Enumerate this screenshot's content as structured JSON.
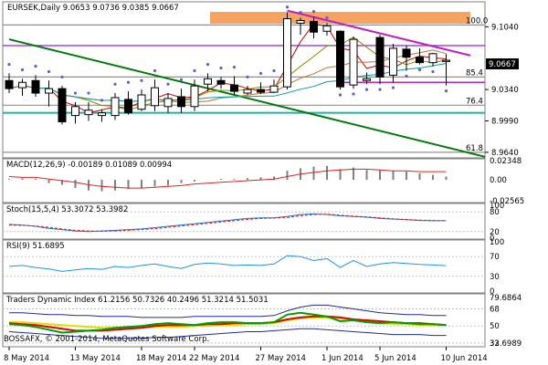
{
  "chart_data": {
    "type": "candlestick",
    "symbol_line": "EURSEK,Daily  9.0653 9.0736 9.0385 9.0667",
    "current_price": "9.0667",
    "price_range": [
      8.9588,
      9.1308
    ],
    "price_ticks": [
      "9.1040",
      "9.0667",
      "9.0340",
      "8.9990",
      "8.9640"
    ],
    "fib_levels": [
      {
        "label": "100.0",
        "value": 9.106
      },
      {
        "label": "85.4",
        "value": 9.048
      },
      {
        "label": "76.4",
        "value": 9.0165
      },
      {
        "label": "61.8",
        "value": 8.964
      }
    ],
    "x_labels": [
      {
        "text": "8 May 2014",
        "day": 0
      },
      {
        "text": "13 May 2014",
        "day": 5
      },
      {
        "text": "18 May 2014",
        "day": 10
      },
      {
        "text": "22 May 2014",
        "day": 14
      },
      {
        "text": "27 May 2014",
        "day": 19
      },
      {
        "text": "1 Jun 2014",
        "day": 24
      },
      {
        "text": "5 Jun 2014",
        "day": 28
      },
      {
        "text": "10 Jun 2014",
        "day": 33
      }
    ],
    "candles": [
      {
        "day": 0,
        "o": 9.044,
        "h": 9.052,
        "l": 9.03,
        "c": 9.035
      },
      {
        "day": 1,
        "o": 9.036,
        "h": 9.046,
        "l": 9.027,
        "c": 9.042
      },
      {
        "day": 2,
        "o": 9.044,
        "h": 9.05,
        "l": 9.026,
        "c": 9.03
      },
      {
        "day": 3,
        "o": 9.03,
        "h": 9.044,
        "l": 9.015,
        "c": 9.035
      },
      {
        "day": 4,
        "o": 9.035,
        "h": 9.038,
        "l": 8.995,
        "c": 8.998
      },
      {
        "day": 5,
        "o": 9.005,
        "h": 9.02,
        "l": 8.996,
        "c": 9.015
      },
      {
        "day": 6,
        "o": 9.006,
        "h": 9.02,
        "l": 8.999,
        "c": 9.011
      },
      {
        "day": 7,
        "o": 9.005,
        "h": 9.012,
        "l": 8.998,
        "c": 9.008
      },
      {
        "day": 8,
        "o": 9.005,
        "h": 9.03,
        "l": 9.0,
        "c": 9.025
      },
      {
        "day": 9,
        "o": 9.023,
        "h": 9.032,
        "l": 9.006,
        "c": 9.008
      },
      {
        "day": 10,
        "o": 9.012,
        "h": 9.034,
        "l": 9.01,
        "c": 9.028
      },
      {
        "day": 11,
        "o": 9.016,
        "h": 9.045,
        "l": 9.01,
        "c": 9.036
      },
      {
        "day": 12,
        "o": 9.015,
        "h": 9.03,
        "l": 9.008,
        "c": 9.024
      },
      {
        "day": 13,
        "o": 9.026,
        "h": 9.035,
        "l": 9.008,
        "c": 9.015
      },
      {
        "day": 14,
        "o": 9.015,
        "h": 9.045,
        "l": 9.01,
        "c": 9.038
      },
      {
        "day": 15,
        "o": 9.04,
        "h": 9.052,
        "l": 9.032,
        "c": 9.046
      },
      {
        "day": 16,
        "o": 9.044,
        "h": 9.048,
        "l": 9.035,
        "c": 9.04
      },
      {
        "day": 17,
        "o": 9.039,
        "h": 9.049,
        "l": 9.028,
        "c": 9.032
      },
      {
        "day": 18,
        "o": 9.03,
        "h": 9.038,
        "l": 9.028,
        "c": 9.034
      },
      {
        "day": 19,
        "o": 9.034,
        "h": 9.042,
        "l": 9.029,
        "c": 9.031
      },
      {
        "day": 20,
        "o": 9.031,
        "h": 9.045,
        "l": 9.03,
        "c": 9.038
      },
      {
        "day": 21,
        "o": 9.037,
        "h": 9.12,
        "l": 9.034,
        "c": 9.113
      },
      {
        "day": 22,
        "o": 9.108,
        "h": 9.114,
        "l": 9.095,
        "c": 9.111
      },
      {
        "day": 23,
        "o": 9.11,
        "h": 9.115,
        "l": 9.091,
        "c": 9.098
      },
      {
        "day": 24,
        "o": 9.099,
        "h": 9.108,
        "l": 9.094,
        "c": 9.105
      },
      {
        "day": 25,
        "o": 9.099,
        "h": 9.1,
        "l": 9.034,
        "c": 9.037
      },
      {
        "day": 26,
        "o": 9.039,
        "h": 9.093,
        "l": 9.035,
        "c": 9.09
      },
      {
        "day": 27,
        "o": 9.044,
        "h": 9.053,
        "l": 9.04,
        "c": 9.046
      },
      {
        "day": 28,
        "o": 9.092,
        "h": 9.095,
        "l": 9.04,
        "c": 9.048
      },
      {
        "day": 29,
        "o": 9.05,
        "h": 9.085,
        "l": 9.042,
        "c": 9.08
      },
      {
        "day": 30,
        "o": 9.079,
        "h": 9.083,
        "l": 9.055,
        "c": 9.07
      },
      {
        "day": 31,
        "o": 9.07,
        "h": 9.08,
        "l": 9.062,
        "c": 9.064
      },
      {
        "day": 32,
        "o": 9.064,
        "h": 9.075,
        "l": 9.06,
        "c": 9.074
      },
      {
        "day": 33,
        "o": 9.0653,
        "h": 9.0736,
        "l": 9.0385,
        "c": 9.0667
      }
    ],
    "macd": {
      "label": "MACD(12,26,9) -0.00189 0.01089 0.00994",
      "range": [
        -0.0255,
        0.0234
      ],
      "ticks": [
        "0.02348",
        "0.00",
        "-0.02565"
      ],
      "hist": [
        0.001,
        0.002,
        0.001,
        -0.004,
        -0.006,
        -0.01,
        -0.013,
        -0.014,
        -0.013,
        -0.011,
        -0.01,
        -0.008,
        -0.007,
        -0.004,
        -0.002,
        0.0,
        0.001,
        0.001,
        0.002,
        0.003,
        0.004,
        0.011,
        0.014,
        0.016,
        0.017,
        0.013,
        0.015,
        0.012,
        0.012,
        0.011,
        0.01,
        0.008,
        0.006,
        0.004
      ],
      "signal": [
        0.004,
        0.003,
        0.003,
        0.001,
        -0.001,
        -0.003,
        -0.006,
        -0.008,
        -0.009,
        -0.01,
        -0.01,
        -0.009,
        -0.008,
        -0.007,
        -0.005,
        -0.004,
        -0.003,
        -0.002,
        -0.001,
        0.0,
        0.001,
        0.004,
        0.007,
        0.009,
        0.011,
        0.012,
        0.013,
        0.013,
        0.012,
        0.011,
        0.011,
        0.01,
        0.01,
        0.01
      ]
    },
    "stoch": {
      "label": "Stoch(15,5,4) 53.3072 53.3982",
      "ticks": [
        "100",
        "80",
        "20",
        "0"
      ],
      "main": [
        42,
        40,
        36,
        30,
        26,
        22,
        20,
        22,
        24,
        26,
        28,
        32,
        36,
        40,
        44,
        48,
        52,
        56,
        60,
        62,
        62,
        66,
        72,
        74,
        72,
        68,
        66,
        64,
        60,
        58,
        56,
        54,
        53,
        53
      ],
      "signal": [
        40,
        39,
        37,
        33,
        28,
        24,
        22,
        21,
        22,
        24,
        26,
        29,
        33,
        37,
        41,
        45,
        49,
        53,
        57,
        60,
        61,
        63,
        68,
        72,
        73,
        70,
        67,
        65,
        62,
        59,
        57,
        55,
        54,
        53
      ]
    },
    "rsi": {
      "label": "RSI(9) 51.6895",
      "ticks": [
        "100",
        "70",
        "30",
        "0"
      ],
      "values": [
        50,
        52,
        48,
        45,
        40,
        43,
        46,
        44,
        50,
        48,
        52,
        55,
        50,
        46,
        54,
        57,
        55,
        52,
        53,
        52,
        55,
        72,
        70,
        62,
        66,
        48,
        62,
        50,
        55,
        58,
        56,
        54,
        53,
        51.7
      ]
    },
    "tdi": {
      "label": "Traders Dynamic Index 61.2156 50.7326 40.2496 51.3214 51.5031",
      "ticks": [
        "79.6864",
        "68",
        "50",
        "32",
        "33.6989"
      ],
      "range": [
        30,
        82
      ],
      "upper": [
        64,
        64,
        63,
        62,
        62,
        61,
        61,
        60,
        60,
        60,
        59,
        59,
        59,
        59,
        60,
        60,
        60,
        60,
        60,
        60,
        61,
        66,
        70,
        72,
        72,
        70,
        68,
        66,
        64,
        63,
        62,
        62,
        61,
        61
      ],
      "mid": [
        54,
        54,
        53,
        52,
        51,
        50,
        49,
        48,
        48,
        48,
        48,
        49,
        49,
        49,
        50,
        50,
        51,
        51,
        52,
        52,
        53,
        56,
        58,
        59,
        59,
        58,
        56,
        55,
        53,
        52,
        52,
        51,
        51,
        51
      ],
      "lower": [
        44,
        43,
        42,
        41,
        40,
        39,
        38,
        37,
        37,
        37,
        37,
        38,
        38,
        39,
        40,
        41,
        42,
        43,
        44,
        44,
        45,
        46,
        47,
        47,
        46,
        45,
        44,
        43,
        42,
        41,
        41,
        41,
        40,
        40
      ],
      "green": [
        52,
        51,
        49,
        46,
        43,
        44,
        45,
        46,
        48,
        49,
        50,
        52,
        53,
        52,
        51,
        53,
        54,
        54,
        53,
        53,
        54,
        62,
        64,
        62,
        60,
        55,
        56,
        54,
        53,
        54,
        53,
        52,
        52,
        51
      ],
      "red": [
        53,
        52,
        51,
        49,
        47,
        45,
        45,
        45,
        46,
        47,
        48,
        50,
        51,
        51,
        51,
        52,
        52,
        53,
        53,
        53,
        54,
        57,
        59,
        60,
        60,
        59,
        57,
        56,
        55,
        54,
        53,
        53,
        52,
        51
      ]
    },
    "watermark": "BOSSAFX, © 2001-2014, MetaQuotes Software Corp."
  },
  "colors": {
    "frame": "#808080",
    "orange_band": "#F4A460",
    "magenta_line": "#C020C0",
    "trend_green": "#00780A",
    "support_cyan": "#20B2AA",
    "fib_gray": "#909090",
    "ma_red": "#D00000",
    "ma_olive": "#8B8B00",
    "ma_brown": "#C07030",
    "ma_teal": "#00A0A0",
    "dots": "#6A5ACD",
    "macd_hist": "#808080",
    "macd_signal": "#E02020",
    "stoch_main": "#1E6FD0",
    "stoch_signal": "#E02020",
    "rsi_line": "#1E90FF",
    "tdi_band": "#1E2AA0",
    "tdi_mid": "#E0E000",
    "tdi_green": "#00A000",
    "tdi_red": "#E00000"
  }
}
